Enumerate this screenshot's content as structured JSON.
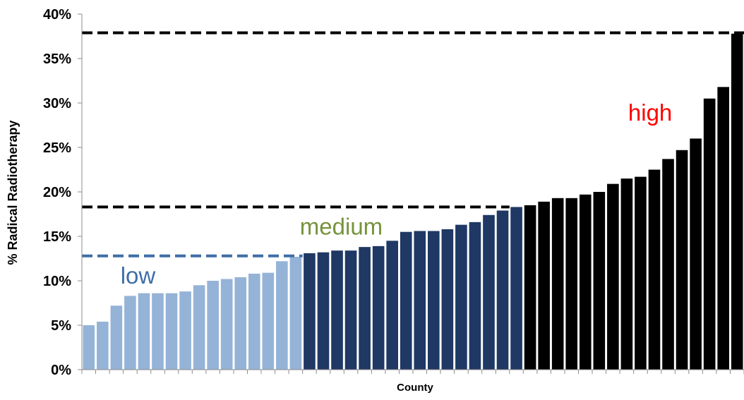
{
  "chart_data": {
    "type": "bar",
    "xlabel": "County",
    "ylabel": "% Radical Radiotherapy",
    "ylim": [
      0,
      40
    ],
    "yticks": [
      "0%",
      "5%",
      "10%",
      "15%",
      "20%",
      "25%",
      "30%",
      "35%",
      "40%"
    ],
    "grid": false,
    "legend": "none",
    "series": [
      {
        "group": "low",
        "color": "#95b3d7",
        "values": [
          5.0,
          5.4,
          7.2,
          8.3,
          8.6,
          8.6,
          8.6,
          8.8,
          9.5,
          10.0,
          10.2,
          10.4,
          10.8,
          10.9,
          12.2,
          12.7
        ]
      },
      {
        "group": "medium",
        "color": "#1f3864",
        "values": [
          13.1,
          13.2,
          13.4,
          13.4,
          13.8,
          13.9,
          14.5,
          15.5,
          15.6,
          15.6,
          15.8,
          16.3,
          16.6,
          17.4,
          17.9,
          18.3
        ]
      },
      {
        "group": "high",
        "color": "#000000",
        "values": [
          18.5,
          18.9,
          19.3,
          19.3,
          19.7,
          20.0,
          20.9,
          21.5,
          21.7,
          22.5,
          23.7,
          24.7,
          26.0,
          30.5,
          31.8,
          37.8
        ]
      }
    ],
    "annotations": [
      {
        "text": "low",
        "color": "#3f6ea8",
        "x_bar": 2.8,
        "y": 9.7
      },
      {
        "text": "medium",
        "color": "#76933c",
        "x_bar": 15.8,
        "y": 15.2
      },
      {
        "text": "high",
        "color": "#ff0000",
        "x_bar": 39.6,
        "y": 28.0
      }
    ],
    "reference_lines": [
      {
        "y": 12.8,
        "color": "#3f6ea8",
        "start_bar": 0,
        "end_bar": 16
      },
      {
        "y": 18.3,
        "color": "#000000",
        "start_bar": 0,
        "end_bar": 31
      },
      {
        "y": 37.9,
        "color": "#000000",
        "start_bar": 0,
        "end_bar": 48
      }
    ]
  }
}
